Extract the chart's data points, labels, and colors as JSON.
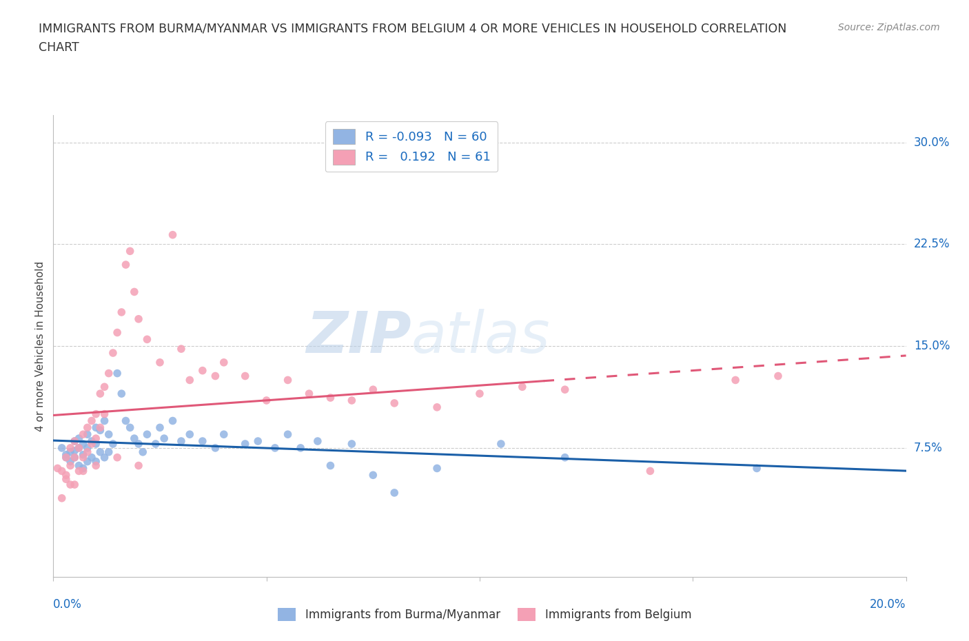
{
  "title_line1": "IMMIGRANTS FROM BURMA/MYANMAR VS IMMIGRANTS FROM BELGIUM 4 OR MORE VEHICLES IN HOUSEHOLD CORRELATION",
  "title_line2": "CHART",
  "source": "Source: ZipAtlas.com",
  "ylabel": "4 or more Vehicles in Household",
  "yticks": [
    0.0,
    0.075,
    0.15,
    0.225,
    0.3
  ],
  "ytick_labels": [
    "",
    "7.5%",
    "15.0%",
    "22.5%",
    "30.0%"
  ],
  "xlim": [
    0.0,
    0.2
  ],
  "ylim": [
    -0.02,
    0.32
  ],
  "legend_r_burma": "-0.093",
  "legend_n_burma": "60",
  "legend_r_belgium": "0.192",
  "legend_n_belgium": "61",
  "color_burma": "#92b4e3",
  "color_belgium": "#f4a0b5",
  "line_color_burma": "#1a5fa8",
  "line_color_belgium": "#e05878",
  "watermark_zip": "ZIP",
  "watermark_atlas": "atlas",
  "burma_x": [
    0.002,
    0.003,
    0.003,
    0.004,
    0.004,
    0.005,
    0.005,
    0.005,
    0.006,
    0.006,
    0.006,
    0.007,
    0.007,
    0.007,
    0.008,
    0.008,
    0.008,
    0.009,
    0.009,
    0.01,
    0.01,
    0.01,
    0.011,
    0.011,
    0.012,
    0.012,
    0.013,
    0.013,
    0.014,
    0.015,
    0.016,
    0.017,
    0.018,
    0.019,
    0.02,
    0.021,
    0.022,
    0.024,
    0.025,
    0.026,
    0.028,
    0.03,
    0.032,
    0.035,
    0.038,
    0.04,
    0.045,
    0.048,
    0.052,
    0.055,
    0.058,
    0.062,
    0.065,
    0.07,
    0.075,
    0.08,
    0.09,
    0.105,
    0.12,
    0.165
  ],
  "burma_y": [
    0.075,
    0.07,
    0.068,
    0.072,
    0.065,
    0.08,
    0.073,
    0.068,
    0.082,
    0.075,
    0.062,
    0.078,
    0.07,
    0.06,
    0.085,
    0.075,
    0.065,
    0.08,
    0.068,
    0.09,
    0.078,
    0.065,
    0.088,
    0.072,
    0.095,
    0.068,
    0.085,
    0.072,
    0.078,
    0.13,
    0.115,
    0.095,
    0.09,
    0.082,
    0.078,
    0.072,
    0.085,
    0.078,
    0.09,
    0.082,
    0.095,
    0.08,
    0.085,
    0.08,
    0.075,
    0.085,
    0.078,
    0.08,
    0.075,
    0.085,
    0.075,
    0.08,
    0.062,
    0.078,
    0.055,
    0.042,
    0.06,
    0.078,
    0.068,
    0.06
  ],
  "belgium_x": [
    0.001,
    0.002,
    0.002,
    0.003,
    0.003,
    0.004,
    0.004,
    0.004,
    0.005,
    0.005,
    0.006,
    0.006,
    0.007,
    0.007,
    0.008,
    0.008,
    0.009,
    0.009,
    0.01,
    0.01,
    0.011,
    0.011,
    0.012,
    0.012,
    0.013,
    0.014,
    0.015,
    0.016,
    0.017,
    0.018,
    0.019,
    0.02,
    0.022,
    0.025,
    0.028,
    0.03,
    0.032,
    0.035,
    0.038,
    0.04,
    0.045,
    0.05,
    0.055,
    0.06,
    0.065,
    0.07,
    0.075,
    0.08,
    0.09,
    0.1,
    0.11,
    0.12,
    0.14,
    0.16,
    0.17,
    0.003,
    0.005,
    0.007,
    0.01,
    0.015,
    0.02
  ],
  "belgium_y": [
    0.06,
    0.058,
    0.038,
    0.068,
    0.052,
    0.075,
    0.062,
    0.048,
    0.08,
    0.068,
    0.075,
    0.058,
    0.085,
    0.068,
    0.09,
    0.072,
    0.095,
    0.078,
    0.1,
    0.082,
    0.115,
    0.09,
    0.12,
    0.1,
    0.13,
    0.145,
    0.16,
    0.175,
    0.21,
    0.22,
    0.19,
    0.17,
    0.155,
    0.138,
    0.232,
    0.148,
    0.125,
    0.132,
    0.128,
    0.138,
    0.128,
    0.11,
    0.125,
    0.115,
    0.112,
    0.11,
    0.118,
    0.108,
    0.105,
    0.115,
    0.12,
    0.118,
    0.058,
    0.125,
    0.128,
    0.055,
    0.048,
    0.058,
    0.062,
    0.068,
    0.062
  ]
}
